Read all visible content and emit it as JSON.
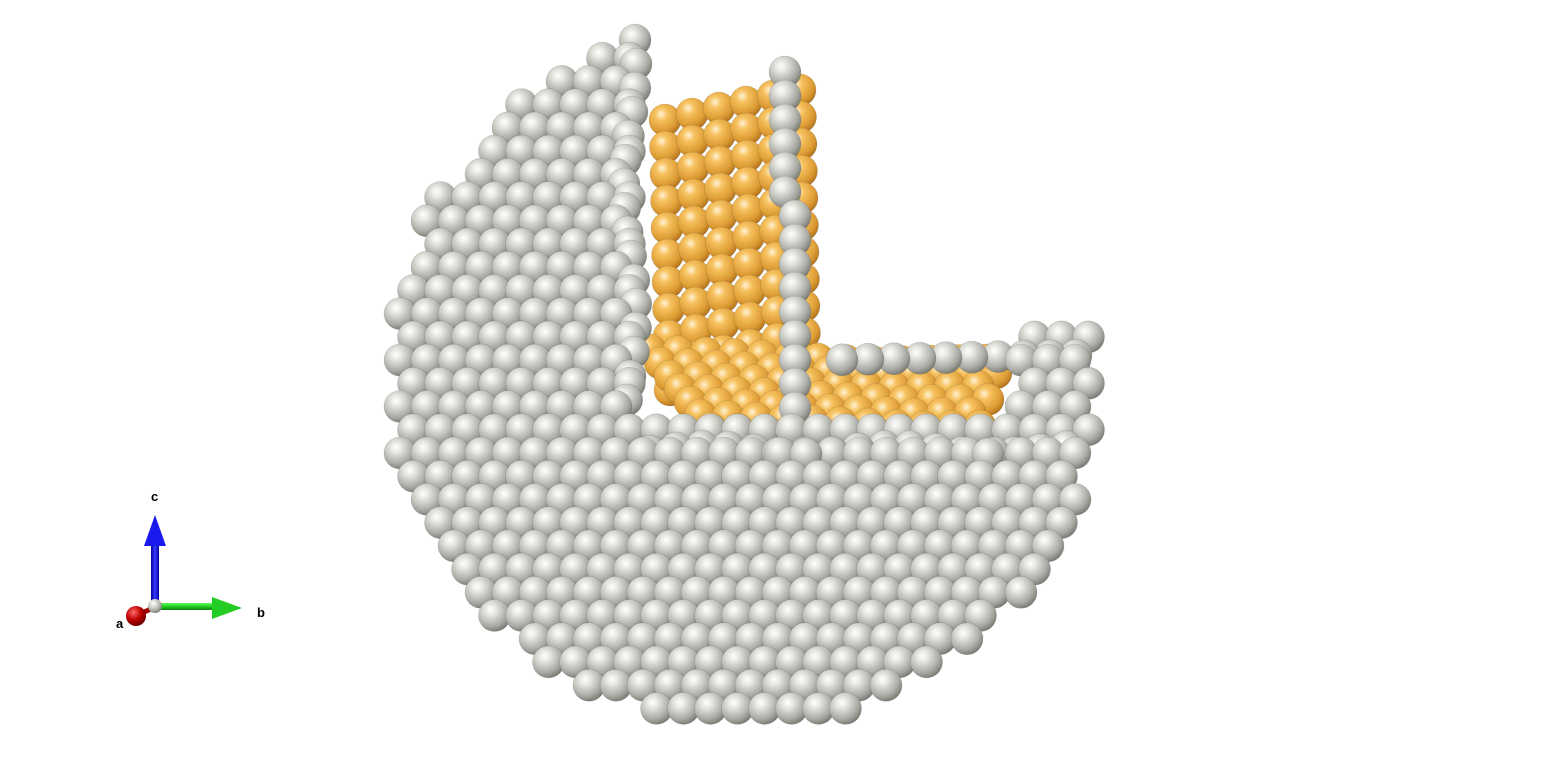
{
  "scene": {
    "background": "#ffffff",
    "description_free": true,
    "shell_atom_color": "#c8c8c3",
    "core_atom_color": "#f2b042"
  },
  "axes": {
    "a": {
      "label": "a",
      "color": "#c00000"
    },
    "b": {
      "label": "b",
      "color": "#22dd22"
    },
    "c": {
      "label": "c",
      "color": "#1a1aee"
    }
  }
}
